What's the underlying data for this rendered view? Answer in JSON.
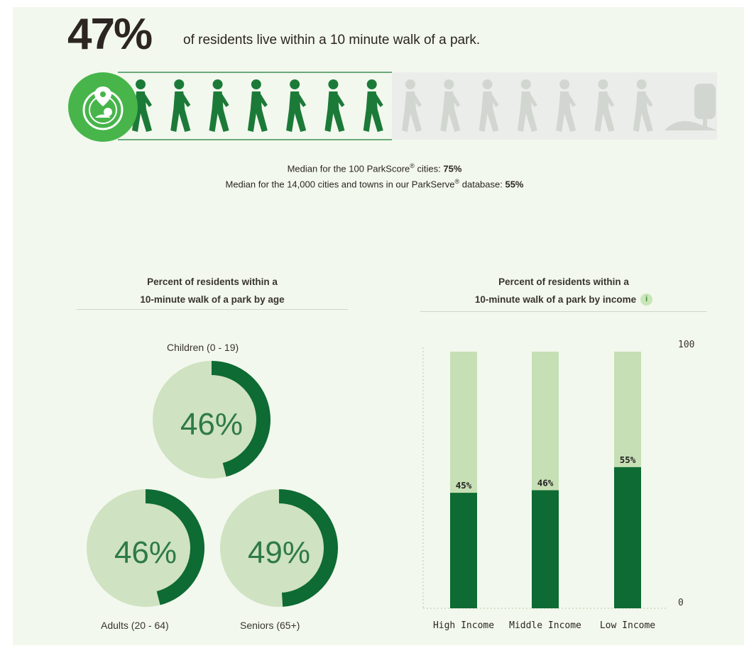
{
  "headline": {
    "percent": "47%",
    "text": "of residents live within a 10 minute walk of a park."
  },
  "medians": {
    "line1_prefix": "Median for the 100 ParkScore",
    "line1_reg": "®",
    "line1_suffix": " cities: ",
    "line1_value": "75%",
    "line2_prefix": "Median for the 14,000 cities and towns in our ParkServe",
    "line2_reg": "®",
    "line2_suffix": " database: ",
    "line2_value": "55%"
  },
  "age_section": {
    "title_line1": "Percent of residents within a",
    "title_line2": "10-minute walk of a park by age"
  },
  "income_section": {
    "title_line1": "Percent of residents within a",
    "title_line2": "10-minute walk of a park by income",
    "info_icon": "i"
  },
  "colors": {
    "dark_green": "#0d6b33",
    "light_green": "#c6dfb5",
    "donut_fill": "#cfe2c1",
    "walker_green": "#1c7a38",
    "walker_gray": "#d2d6d0",
    "icon_green": "#47b54a"
  },
  "chart_data": [
    {
      "type": "pie",
      "title": "Percent of residents within a 10-minute walk of a park by age",
      "series": [
        {
          "name": "Children (0 - 19)",
          "value": 46,
          "label": "46%"
        },
        {
          "name": "Adults (20 - 64)",
          "value": 46,
          "label": "46%"
        },
        {
          "name": "Seniors (65+)",
          "value": 49,
          "label": "49%"
        }
      ]
    },
    {
      "type": "bar",
      "title": "Percent of residents within a 10-minute walk of a park by income",
      "categories": [
        "High Income",
        "Middle Income",
        "Low Income"
      ],
      "values": [
        45,
        46,
        55
      ],
      "data_labels": [
        "45%",
        "46%",
        "55%"
      ],
      "ylim": [
        0,
        100
      ],
      "y_ticks": [
        "0",
        "100"
      ],
      "stacked_background_max": 100
    }
  ]
}
